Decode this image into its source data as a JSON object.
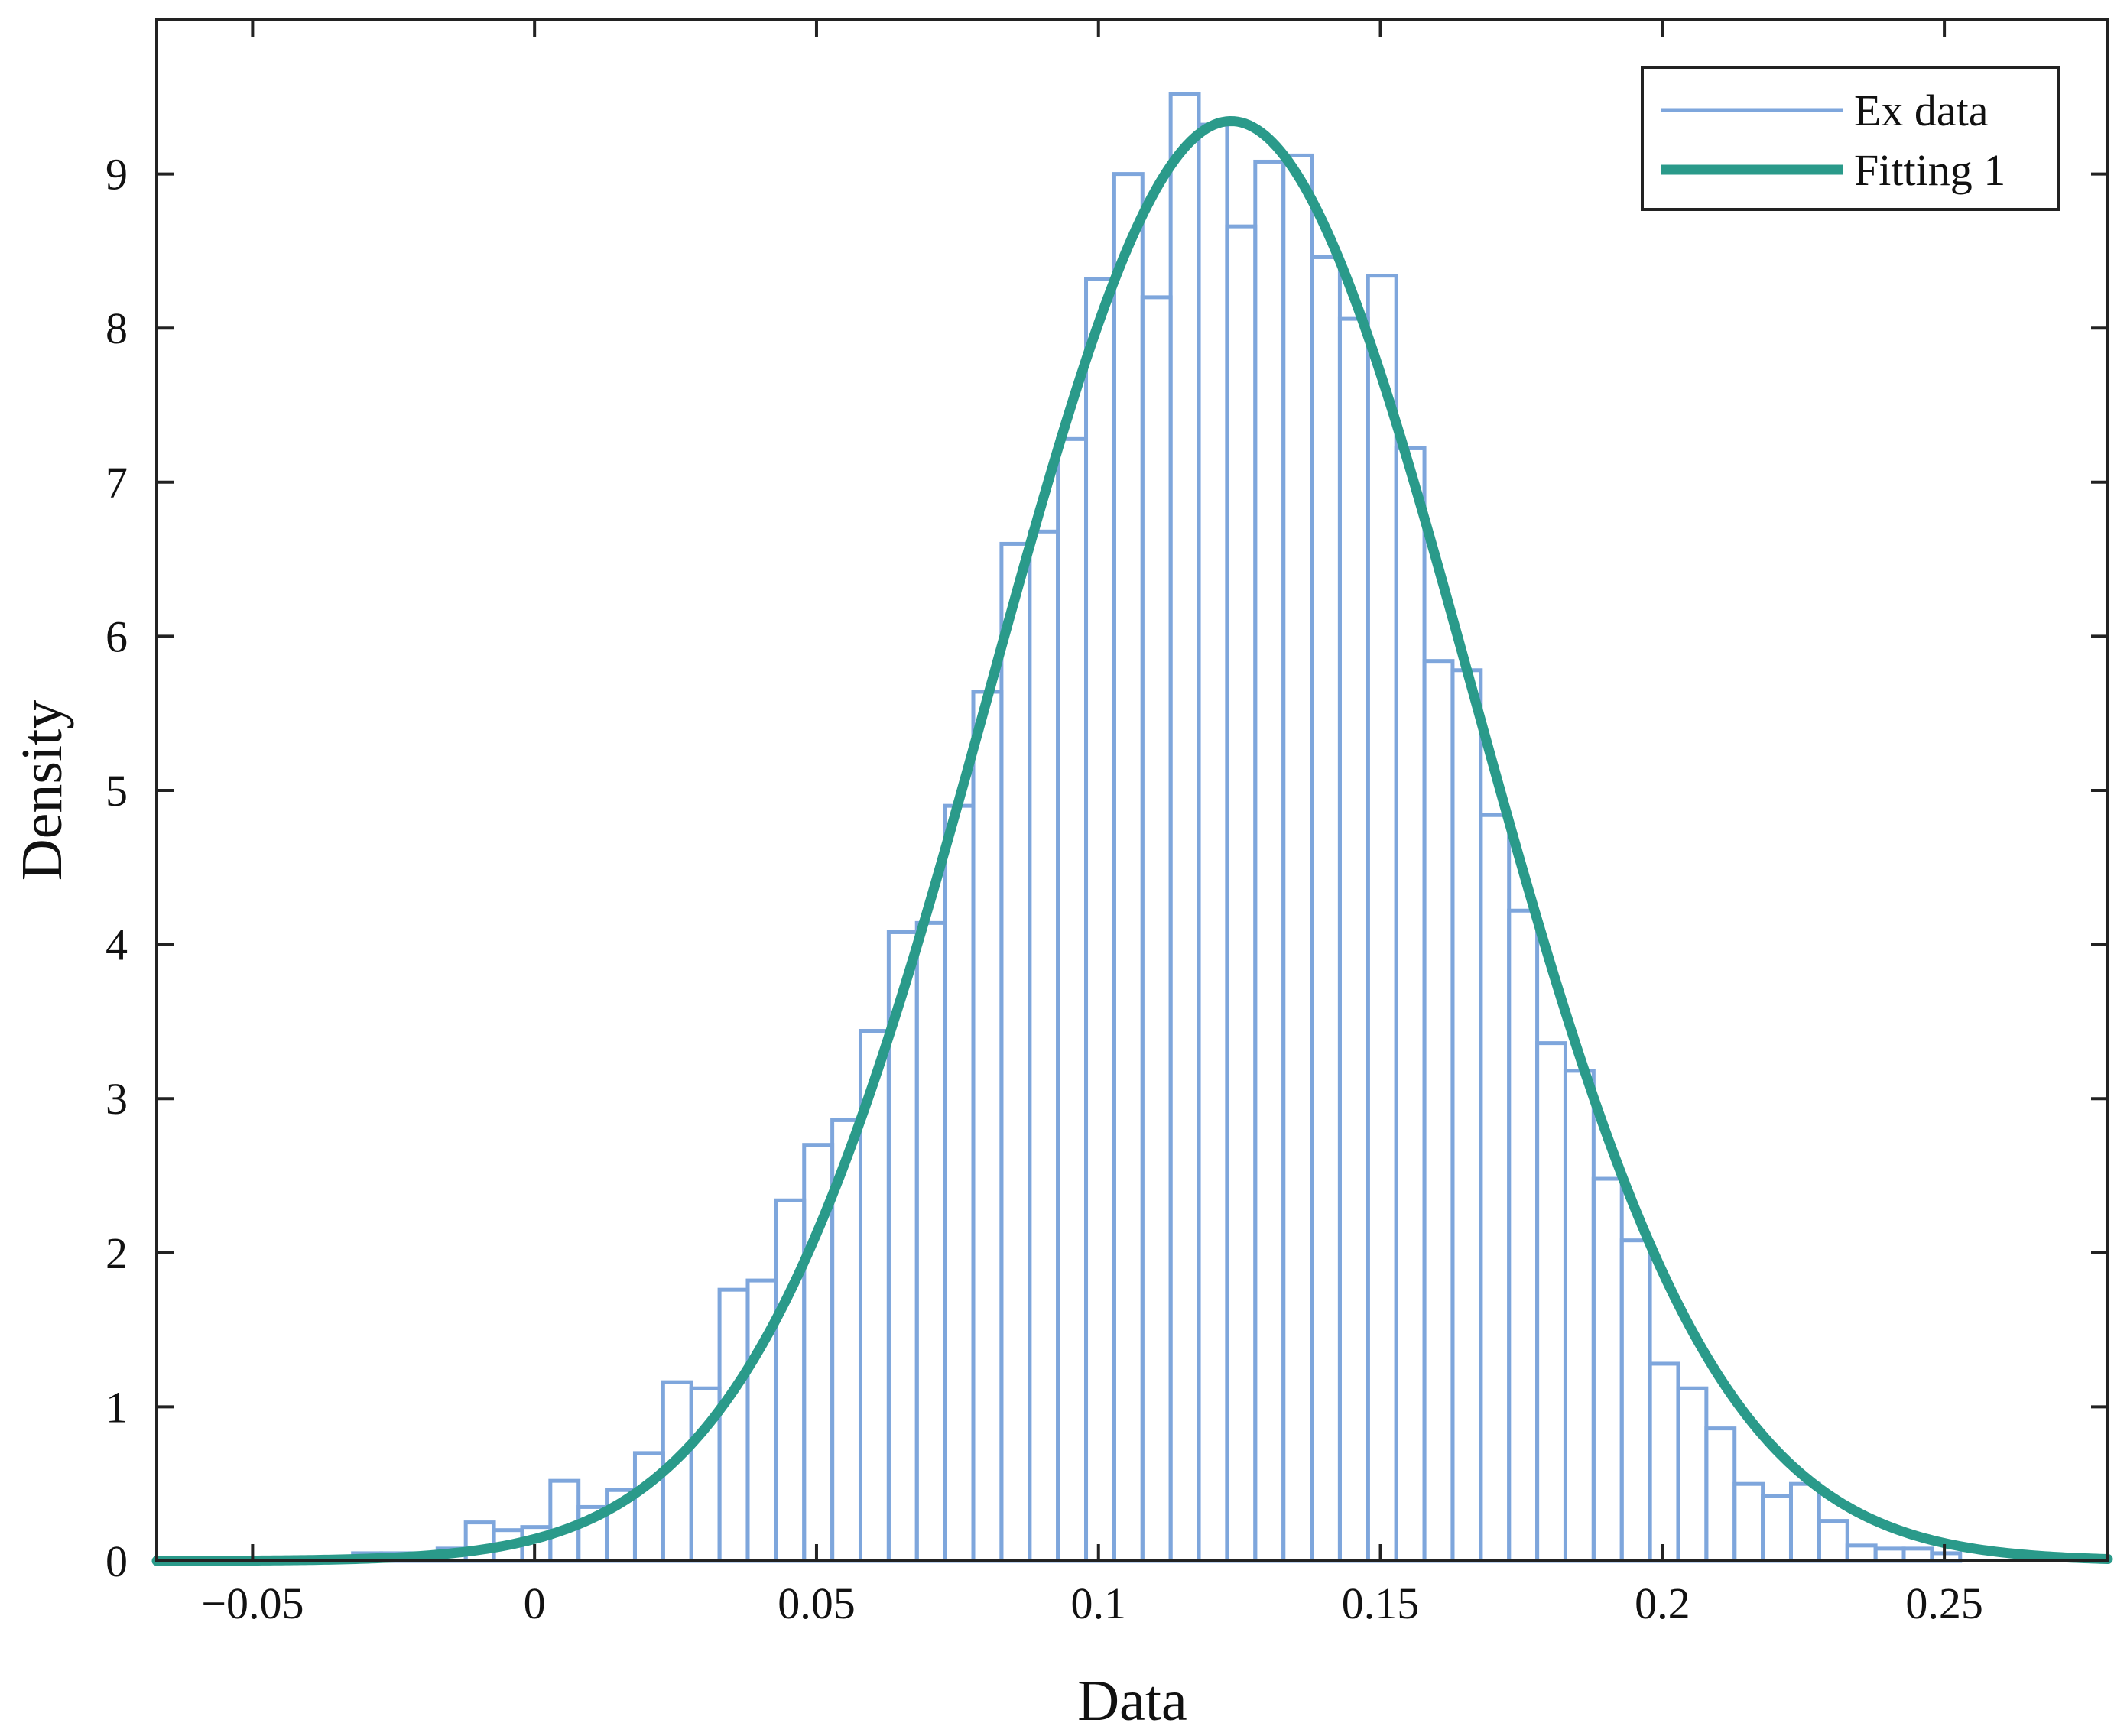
{
  "chart_data": {
    "type": "bar",
    "xlabel": "Data",
    "ylabel": "Density",
    "xlim": [
      -0.067,
      0.279
    ],
    "ylim": [
      0,
      10
    ],
    "xticks": [
      -0.05,
      0,
      0.05,
      0.1,
      0.15,
      0.2,
      0.25
    ],
    "xtick_labels": [
      "−0.05",
      "0",
      "0.05",
      "0.1",
      "0.15",
      "0.2",
      "0.25"
    ],
    "yticks": [
      0,
      1,
      2,
      3,
      4,
      5,
      6,
      7,
      8,
      9
    ],
    "ytick_labels": [
      "0",
      "1",
      "2",
      "3",
      "4",
      "5",
      "6",
      "7",
      "8",
      "9"
    ],
    "grid": false,
    "legend_position": "top-right",
    "bin_edges": [
      -0.0322,
      -0.0272,
      -0.0222,
      -0.0172,
      -0.0122,
      -0.0072,
      -0.0022,
      0.0028,
      0.0078,
      0.0128,
      0.0178,
      0.0228,
      0.0278,
      0.0328,
      0.0378,
      0.0428,
      0.0478,
      0.0528,
      0.0578,
      0.0628,
      0.0678,
      0.0728,
      0.0778,
      0.0828,
      0.0878,
      0.0928,
      0.0978,
      0.1028,
      0.1078,
      0.1128,
      0.1178,
      0.1228,
      0.1278,
      0.1328,
      0.1378,
      0.1428,
      0.1478,
      0.1528,
      0.1578,
      0.1628,
      0.1678,
      0.1728,
      0.1778,
      0.1828,
      0.1878,
      0.1928,
      0.1978,
      0.2028,
      0.2078,
      0.2128,
      0.2178,
      0.2228,
      0.2278,
      0.2328,
      0.2378,
      0.2428,
      0.2478,
      0.2528
    ],
    "series": [
      {
        "name": "Ex data",
        "type": "histogram",
        "color": "#7ea6dc",
        "values": [
          0.05,
          0.05,
          0.05,
          0.08,
          0.25,
          0.2,
          0.22,
          0.52,
          0.35,
          0.46,
          0.7,
          1.16,
          1.12,
          1.76,
          1.82,
          2.34,
          2.7,
          2.86,
          3.44,
          4.08,
          4.14,
          4.9,
          5.64,
          6.6,
          6.68,
          7.28,
          8.32,
          9.0,
          8.2,
          9.52,
          9.32,
          8.66,
          9.08,
          9.12,
          8.46,
          8.06,
          8.34,
          7.22,
          5.84,
          5.78,
          4.84,
          4.22,
          3.36,
          3.18,
          2.48,
          2.08,
          1.28,
          1.12,
          0.86,
          0.5,
          0.42,
          0.5,
          0.26,
          0.1,
          0.08,
          0.08,
          0.05
        ]
      },
      {
        "name": "Fitting 1",
        "type": "line",
        "color": "#2a9a8a",
        "distribution": "normal",
        "mean": 0.1235,
        "std": 0.0427,
        "x_range": [
          -0.067,
          0.279
        ]
      }
    ]
  }
}
